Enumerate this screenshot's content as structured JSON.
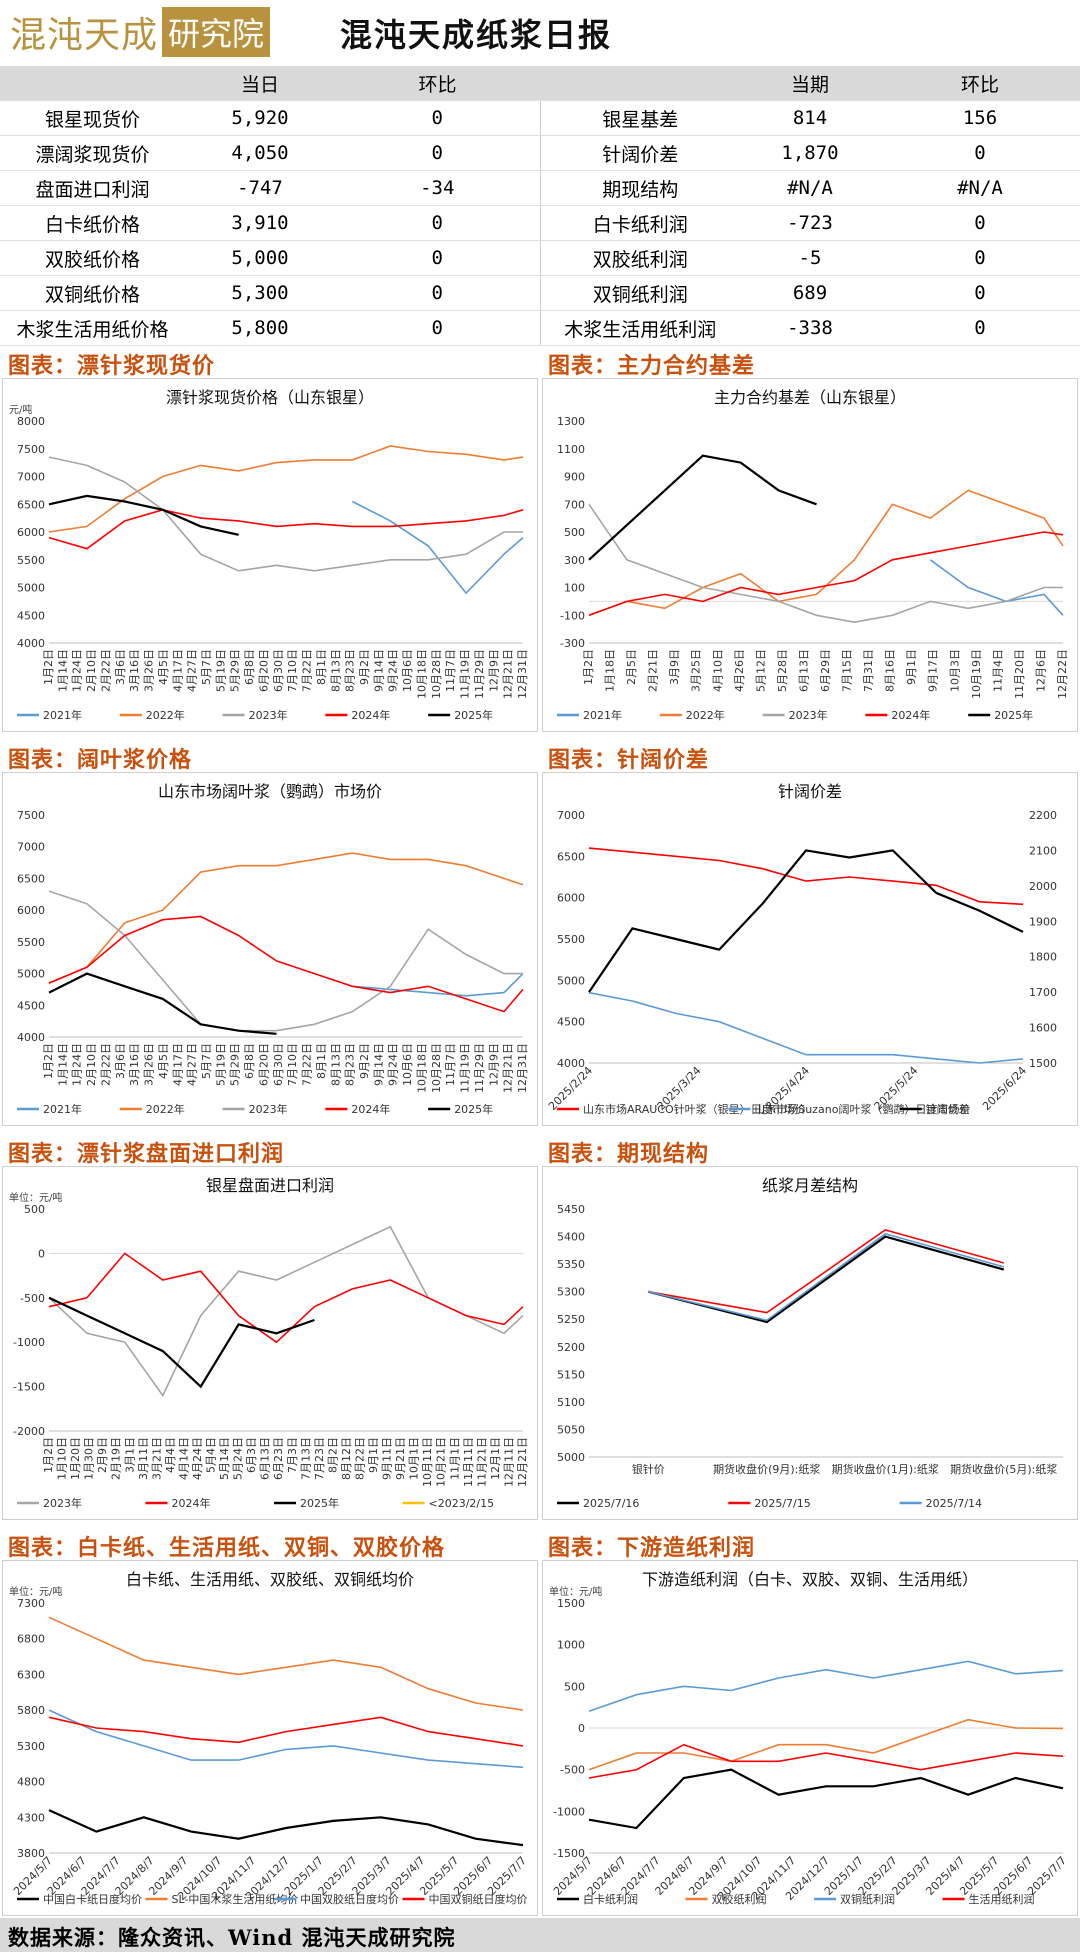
{
  "header": {
    "logo_text": "混沌天成",
    "logo_box": "研究院",
    "title": "混沌天成纸浆日报"
  },
  "summary": {
    "left_headers": [
      "当日",
      "环比"
    ],
    "right_headers": [
      "当期",
      "环比"
    ],
    "rows": [
      {
        "l_label": "银星现货价",
        "l_val": "5,920",
        "l_chg": "0",
        "r_label": "银星基差",
        "r_val": "814",
        "r_chg": "156"
      },
      {
        "l_label": "漂阔浆现货价",
        "l_val": "4,050",
        "l_chg": "0",
        "r_label": "针阔价差",
        "r_val": "1,870",
        "r_chg": "0"
      },
      {
        "l_label": "盘面进口利润",
        "l_val": "-747",
        "l_chg": "-34",
        "r_label": "期现结构",
        "r_val": "#N/A",
        "r_chg": "#N/A"
      },
      {
        "l_label": "白卡纸价格",
        "l_val": "3,910",
        "l_chg": "0",
        "r_label": "白卡纸利润",
        "r_val": "-723",
        "r_chg": "0"
      },
      {
        "l_label": "双胶纸价格",
        "l_val": "5,000",
        "l_chg": "0",
        "r_label": "双胶纸利润",
        "r_val": "-5",
        "r_chg": "0"
      },
      {
        "l_label": "双铜纸价格",
        "l_val": "5,300",
        "l_chg": "0",
        "r_label": "双铜纸利润",
        "r_val": "689",
        "r_chg": "0"
      },
      {
        "l_label": "木浆生活用纸价格",
        "l_val": "5,800",
        "l_chg": "0",
        "r_label": "木浆生活用纸利润",
        "r_val": "-338",
        "r_chg": "0"
      }
    ]
  },
  "sections": {
    "s1": "图表：漂针浆现货价",
    "s2": "图表：主力合约基差",
    "s3": "图表：阔叶浆价格",
    "s4": "图表：针阔价差",
    "s5": "图表：漂针浆盘面进口利润",
    "s6": "图表：期现结构",
    "s7": "图表：白卡纸、生活用纸、双铜、双胶价格",
    "s8": "图表：下游造纸利润"
  },
  "footer": "数据来源：隆众资讯、Wind   混沌天成研究院",
  "colors": {
    "y2021": "#5b9bd5",
    "y2022": "#ed7d31",
    "y2023": "#a5a5a5",
    "y2024": "#ff0000",
    "y2025": "#000000",
    "y2023b": "#ffc000",
    "blue": "#5b9bd5"
  },
  "chart_data": [
    {
      "type": "line",
      "title": "漂针浆现货价格（山东银星）",
      "ylabel": "元/吨",
      "ylim": [
        4000,
        8000
      ],
      "yticks": [
        4000,
        4500,
        5000,
        5500,
        6000,
        6500,
        7000,
        7500,
        8000
      ],
      "xticks": [
        "1月2日",
        "1月14日",
        "1月24日",
        "2月10日",
        "2月22日",
        "3月6日",
        "3月16日",
        "3月26日",
        "4月5日",
        "4月17日",
        "4月27日",
        "5月7日",
        "5月19日",
        "5月29日",
        "6月8日",
        "6月20日",
        "6月30日",
        "7月10日",
        "7月22日",
        "8月1日",
        "8月13日",
        "8月23日",
        "9月2日",
        "9月14日",
        "9月24日",
        "10月6日",
        "10月18日",
        "10月28日",
        "11月7日",
        "11月19日",
        "11月29日",
        "12月9日",
        "12月21日",
        "12月31日"
      ],
      "x": [
        0,
        0.08,
        0.16,
        0.24,
        0.32,
        0.4,
        0.48,
        0.56,
        0.64,
        0.72,
        0.8,
        0.88,
        0.96,
        1.0
      ],
      "series": [
        {
          "name": "2021年",
          "values": [
            null,
            null,
            null,
            null,
            null,
            null,
            null,
            null,
            6550,
            6200,
            5750,
            4900,
            5600,
            5900
          ]
        },
        {
          "name": "2022年",
          "values": [
            6000,
            6100,
            6600,
            7000,
            7200,
            7100,
            7250,
            7300,
            7300,
            7550,
            7450,
            7400,
            7300,
            7350
          ]
        },
        {
          "name": "2023年",
          "values": [
            7350,
            7200,
            6900,
            6400,
            5600,
            5300,
            5400,
            5300,
            5400,
            5500,
            5500,
            5600,
            6000,
            6000
          ]
        },
        {
          "name": "2024年",
          "values": [
            5900,
            5700,
            6200,
            6400,
            6250,
            6200,
            6100,
            6150,
            6100,
            6100,
            6150,
            6200,
            6300,
            6400
          ]
        },
        {
          "name": "2025年",
          "values": [
            6500,
            6650,
            6550,
            6400,
            6100,
            5950,
            null,
            null,
            null,
            null,
            null,
            null,
            null,
            null
          ]
        }
      ]
    },
    {
      "type": "line",
      "title": "主力合约基差（山东银星）",
      "ylim": [
        -300,
        1300
      ],
      "yticks": [
        -300,
        -100,
        100,
        300,
        500,
        700,
        900,
        1100,
        1300
      ],
      "xticks": [
        "1月2日",
        "1月18日",
        "2月5日",
        "2月21日",
        "3月9日",
        "3月25日",
        "4月10日",
        "4月26日",
        "5月12日",
        "5月28日",
        "6月13日",
        "6月29日",
        "7月15日",
        "7月31日",
        "8月16日",
        "9月1日",
        "9月17日",
        "10月3日",
        "10月19日",
        "11月4日",
        "11月20日",
        "12月6日",
        "12月22日"
      ],
      "x": [
        0,
        0.08,
        0.16,
        0.24,
        0.32,
        0.4,
        0.48,
        0.56,
        0.64,
        0.72,
        0.8,
        0.88,
        0.96,
        1.0
      ],
      "series": [
        {
          "name": "2021年",
          "values": [
            null,
            null,
            null,
            null,
            null,
            null,
            null,
            null,
            null,
            300,
            100,
            0,
            50,
            -100
          ]
        },
        {
          "name": "2022年",
          "values": [
            -100,
            0,
            -50,
            100,
            200,
            0,
            50,
            300,
            700,
            600,
            800,
            700,
            600,
            400
          ]
        },
        {
          "name": "2023年",
          "values": [
            700,
            300,
            200,
            100,
            50,
            0,
            -100,
            -150,
            -100,
            0,
            -50,
            0,
            100,
            100
          ]
        },
        {
          "name": "2024年",
          "values": [
            -100,
            0,
            50,
            0,
            100,
            50,
            100,
            150,
            300,
            350,
            400,
            450,
            500,
            480
          ]
        },
        {
          "name": "2025年",
          "values": [
            300,
            550,
            800,
            1050,
            1000,
            800,
            700,
            null,
            null,
            null,
            null,
            null,
            null,
            null
          ]
        }
      ]
    },
    {
      "type": "line",
      "title": "山东市场阔叶浆（鹦鹉）市场价",
      "ylim": [
        4000,
        7500
      ],
      "yticks": [
        4000,
        4500,
        5000,
        5500,
        6000,
        6500,
        7000,
        7500
      ],
      "xticks": [
        "1月2日",
        "1月14日",
        "1月24日",
        "2月10日",
        "2月22日",
        "3月6日",
        "3月16日",
        "3月26日",
        "4月5日",
        "4月17日",
        "4月27日",
        "5月7日",
        "5月19日",
        "5月29日",
        "6月8日",
        "6月20日",
        "6月30日",
        "7月10日",
        "7月22日",
        "8月1日",
        "8月13日",
        "8月23日",
        "9月2日",
        "9月14日",
        "9月24日",
        "10月6日",
        "10月18日",
        "10月28日",
        "11月7日",
        "11月19日",
        "11月29日",
        "12月9日",
        "12月21日",
        "12月31日"
      ],
      "x": [
        0,
        0.08,
        0.16,
        0.24,
        0.32,
        0.4,
        0.48,
        0.56,
        0.64,
        0.72,
        0.8,
        0.88,
        0.96,
        1.0
      ],
      "series": [
        {
          "name": "2021年",
          "values": [
            null,
            null,
            null,
            null,
            null,
            null,
            null,
            null,
            4800,
            4750,
            4700,
            4650,
            4700,
            5000
          ]
        },
        {
          "name": "2022年",
          "values": [
            4850,
            5100,
            5800,
            6000,
            6600,
            6700,
            6700,
            6800,
            6900,
            6800,
            6800,
            6700,
            6500,
            6400
          ]
        },
        {
          "name": "2023年",
          "values": [
            6300,
            6100,
            5600,
            4900,
            4200,
            4100,
            4100,
            4200,
            4400,
            4800,
            5700,
            5300,
            5000,
            5000
          ]
        },
        {
          "name": "2024年",
          "values": [
            4850,
            5100,
            5600,
            5850,
            5900,
            5600,
            5200,
            5000,
            4800,
            4700,
            4800,
            4600,
            4400,
            4750
          ]
        },
        {
          "name": "2025年",
          "values": [
            4700,
            5000,
            4800,
            4600,
            4200,
            4100,
            4050,
            null,
            null,
            null,
            null,
            null,
            null,
            null
          ]
        }
      ]
    },
    {
      "type": "line",
      "title": "针阔价差",
      "ylim": [
        4000,
        7000
      ],
      "y2lim": [
        1500,
        2200
      ],
      "yticks": [
        4000,
        4500,
        5000,
        5500,
        6000,
        6500,
        7000
      ],
      "y2ticks": [
        1500,
        1600,
        1700,
        1800,
        1900,
        2000,
        2100,
        2200
      ],
      "xticks": [
        "2025/2/24",
        "2025/3/24",
        "2025/4/24",
        "2025/5/24",
        "2025/6/24"
      ],
      "x": [
        0,
        0.1,
        0.2,
        0.3,
        0.4,
        0.5,
        0.6,
        0.7,
        0.8,
        0.9,
        1.0
      ],
      "series": [
        {
          "name": "山东市场ARAUCO针叶浆（银星）日度市场价",
          "axis": "left",
          "values": [
            6600,
            6550,
            6500,
            6450,
            6350,
            6200,
            6250,
            6200,
            6150,
            5950,
            5920
          ]
        },
        {
          "name": "山东市场Suzano阔叶浆（鹦鹉）日度市场价",
          "axis": "left",
          "values": [
            4850,
            4750,
            4600,
            4500,
            4300,
            4100,
            4100,
            4100,
            4050,
            4000,
            4050
          ]
        },
        {
          "name": "针阔价差",
          "axis": "right",
          "values": [
            1700,
            1880,
            1850,
            1820,
            1950,
            2100,
            2080,
            2100,
            1980,
            1930,
            1870
          ]
        }
      ]
    },
    {
      "type": "line",
      "title": "银星盘面进口利润",
      "ylabel": "单位：元/吨",
      "ylim": [
        -2000,
        500
      ],
      "yticks": [
        -2000,
        -1500,
        -1000,
        -500,
        0,
        500
      ],
      "xticks": [
        "1月2日",
        "1月10日",
        "1月20日",
        "1月30日",
        "2月9日",
        "2月19日",
        "3月1日",
        "3月11日",
        "3月21日",
        "4月4日",
        "4月14日",
        "4月24日",
        "5月4日",
        "5月14日",
        "5月24日",
        "6月3日",
        "6月13日",
        "6月23日",
        "7月3日",
        "7月13日",
        "7月23日",
        "8月2日",
        "8月12日",
        "8月22日",
        "9月1日",
        "9月11日",
        "9月21日",
        "10月1日",
        "10月11日",
        "10月21日",
        "11月1日",
        "11月11日",
        "11月21日",
        "12月1日",
        "12月11日",
        "12月21日"
      ],
      "x": [
        0,
        0.08,
        0.16,
        0.24,
        0.32,
        0.4,
        0.48,
        0.56,
        0.64,
        0.72,
        0.8,
        0.88,
        0.96,
        1.0
      ],
      "series": [
        {
          "name": "2023年",
          "values": [
            -500,
            -900,
            -1000,
            -1600,
            -700,
            -200,
            -300,
            -100,
            100,
            300,
            -500,
            -700,
            -900,
            -700
          ]
        },
        {
          "name": "2024年",
          "values": [
            -600,
            -500,
            0,
            -300,
            -200,
            -700,
            -1000,
            -600,
            -400,
            -300,
            -500,
            -700,
            -800,
            -600
          ]
        },
        {
          "name": "2025年",
          "values": [
            -500,
            -700,
            -900,
            -1100,
            -1500,
            -800,
            -900,
            -750,
            null,
            null,
            null,
            null,
            null,
            null
          ]
        },
        {
          "name": "<2023/2/15",
          "values": [
            null,
            null,
            null,
            null,
            null,
            null,
            null,
            null,
            null,
            null,
            null,
            null,
            null,
            null
          ]
        }
      ]
    },
    {
      "type": "line",
      "title": "纸浆月差结构",
      "ylim": [
        5000,
        5450
      ],
      "yticks": [
        5000,
        5050,
        5100,
        5150,
        5200,
        5250,
        5300,
        5350,
        5400,
        5450
      ],
      "categories": [
        "银针价",
        "期货收盘价(9月):纸浆",
        "期货收盘价(1月):纸浆",
        "期货收盘价(5月):纸浆"
      ],
      "series": [
        {
          "name": "2025/7/16",
          "values": [
            5300,
            5245,
            5400,
            5340
          ]
        },
        {
          "name": "2025/7/15",
          "values": [
            5300,
            5262,
            5412,
            5352
          ]
        },
        {
          "name": "2025/7/14",
          "values": [
            5300,
            5248,
            5405,
            5345
          ]
        }
      ]
    },
    {
      "type": "line",
      "title": "白卡纸、生活用纸、双胶纸、双铜纸均价",
      "ylabel": "单位：元/吨",
      "ylim": [
        3800,
        7300
      ],
      "yticks": [
        3800,
        4300,
        4800,
        5300,
        5800,
        6300,
        6800,
        7300
      ],
      "xticks": [
        "2024/5/7",
        "2024/6/7",
        "2024/7/7",
        "2024/8/7",
        "2024/9/7",
        "2024/10/7",
        "2024/11/7",
        "2024/12/7",
        "2025/1/7",
        "2025/2/7",
        "2025/3/7",
        "2025/4/7",
        "2025/5/7",
        "2025/6/7",
        "2025/7/7"
      ],
      "x": [
        0,
        0.1,
        0.2,
        0.3,
        0.4,
        0.5,
        0.6,
        0.7,
        0.8,
        0.9,
        1.0
      ],
      "series": [
        {
          "name": "中国白卡纸日度均价",
          "values": [
            4400,
            4100,
            4300,
            4100,
            4000,
            4150,
            4250,
            4300,
            4200,
            4000,
            3910
          ]
        },
        {
          "name": "SL-中国木浆生活用纸均价",
          "values": [
            7100,
            6800,
            6500,
            6400,
            6300,
            6400,
            6500,
            6400,
            6100,
            5900,
            5800
          ]
        },
        {
          "name": "中国双胶纸日度均价",
          "values": [
            5800,
            5500,
            5300,
            5100,
            5100,
            5250,
            5300,
            5200,
            5100,
            5050,
            5000
          ]
        },
        {
          "name": "中国双铜纸日度均价",
          "values": [
            5700,
            5550,
            5500,
            5400,
            5350,
            5500,
            5600,
            5700,
            5500,
            5400,
            5300
          ]
        }
      ]
    },
    {
      "type": "line",
      "title": "下游造纸利润（白卡、双胶、双铜、生活用纸）",
      "ylabel": "单位：元/吨",
      "ylim": [
        -1500,
        1500
      ],
      "yticks": [
        -1500,
        -1000,
        -500,
        0,
        500,
        1000,
        1500
      ],
      "xticks": [
        "2024/5/7",
        "2024/6/7",
        "2024/7/7",
        "2024/8/7",
        "2024/9/7",
        "2024/10/7",
        "2024/11/7",
        "2024/12/7",
        "2025/1/7",
        "2025/2/7",
        "2025/3/7",
        "2025/4/7",
        "2025/5/7",
        "2025/6/7",
        "2025/7/7"
      ],
      "x": [
        0,
        0.1,
        0.2,
        0.3,
        0.4,
        0.5,
        0.6,
        0.7,
        0.8,
        0.9,
        1.0
      ],
      "series": [
        {
          "name": "白卡纸利润",
          "values": [
            -1100,
            -1200,
            -600,
            -500,
            -800,
            -700,
            -700,
            -600,
            -800,
            -600,
            -723
          ]
        },
        {
          "name": "双胶纸利润",
          "values": [
            -500,
            -300,
            -300,
            -400,
            -200,
            -200,
            -300,
            -100,
            100,
            0,
            -5
          ]
        },
        {
          "name": "双铜纸利润",
          "values": [
            200,
            400,
            500,
            450,
            600,
            700,
            600,
            700,
            800,
            650,
            689
          ]
        },
        {
          "name": "生活用纸利润",
          "values": [
            -600,
            -500,
            -200,
            -400,
            -400,
            -300,
            -400,
            -500,
            -400,
            -300,
            -338
          ]
        }
      ]
    }
  ]
}
